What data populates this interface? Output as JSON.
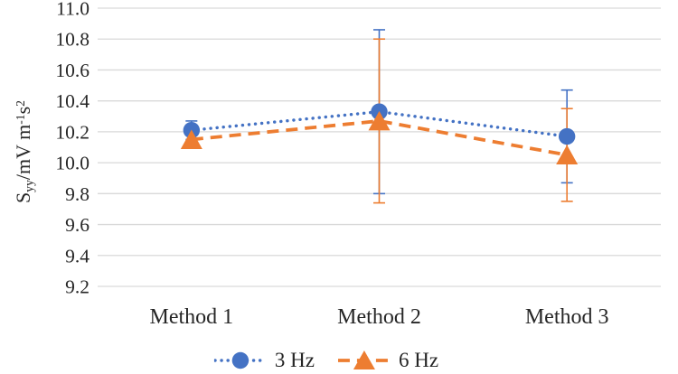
{
  "chart_data": {
    "type": "line",
    "title": "",
    "categories": [
      "Method 1",
      "Method 2",
      "Method 3"
    ],
    "series": [
      {
        "name": "3 Hz",
        "color": "#4472C4",
        "marker": "circle",
        "line_style": "dotted",
        "values": [
          10.21,
          10.33,
          10.17
        ],
        "error_plus": [
          0.06,
          0.53,
          0.3
        ],
        "error_minus": [
          0.06,
          0.53,
          0.3
        ]
      },
      {
        "name": "6 Hz",
        "color": "#ED7D31",
        "marker": "triangle",
        "line_style": "dashed",
        "values": [
          10.15,
          10.27,
          10.05
        ],
        "error_plus": [
          0.05,
          0.53,
          0.3
        ],
        "error_minus": [
          0.05,
          0.53,
          0.3
        ]
      }
    ],
    "ylabel": "Syy/mV m-1s2",
    "ylabel_parts": {
      "base": "S",
      "sub": "yy",
      "mid": "/mV m",
      "sup": "-1",
      "unit2": "s",
      "sup2": "2"
    },
    "xlabel": "",
    "ylim": [
      9.2,
      11.0
    ],
    "ytick_interval": 0.2,
    "ytick_labels": [
      "11.0",
      "10.8",
      "10.6",
      "10.4",
      "10.2",
      "10.0",
      "9.8",
      "9.6",
      "9.4",
      "9.2"
    ],
    "grid": true,
    "gridline_color": "#D9D9D9",
    "text_color": "#262626",
    "background_color": "#FFFFFF",
    "legend_position": "bottom",
    "error_bars": true
  }
}
